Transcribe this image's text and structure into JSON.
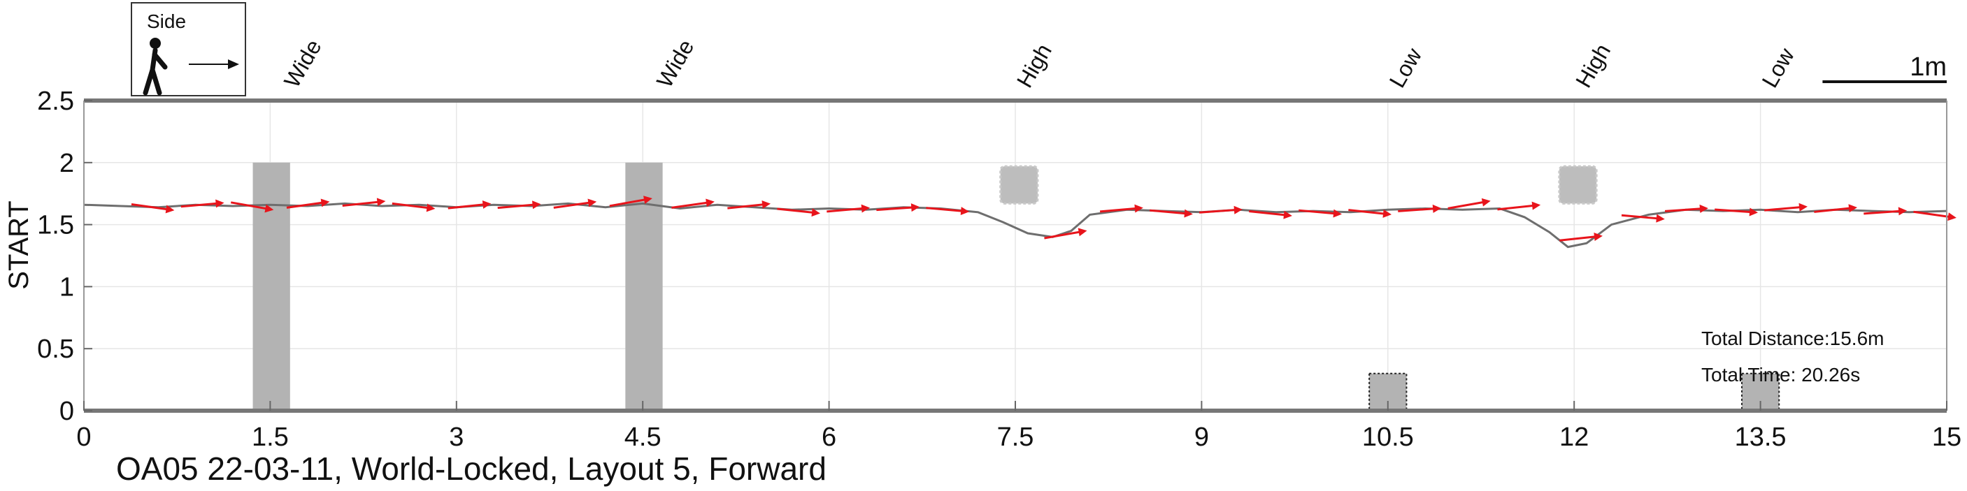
{
  "chart_data": {
    "type": "line",
    "title": "OA05 22-03-11, World-Locked, Layout 5, Forward",
    "ylabel": "START",
    "xlabel": "",
    "xlim": [
      0,
      15
    ],
    "ylim": [
      0,
      2.5
    ],
    "xticks": [
      0,
      1.5,
      3,
      4.5,
      6,
      7.5,
      9,
      10.5,
      12,
      13.5,
      15
    ],
    "xtick_labels": [
      "0",
      "1.5",
      "3",
      "4.5",
      "6",
      "7.5",
      "9",
      "10.5",
      "12",
      "13.5",
      "15"
    ],
    "yticks": [
      0,
      0.5,
      1,
      1.5,
      2,
      2.5
    ],
    "ytick_labels": [
      "0",
      "0.5",
      "1",
      "1.5",
      "2",
      "2.5"
    ],
    "grid": true,
    "legend_box": {
      "label": "Side",
      "icon": "walking-person-arrow-icon"
    },
    "scale_bar": {
      "label": "1m",
      "length": 1.0
    },
    "obstacle_labels": [
      {
        "x": 1.6,
        "label": "Wide"
      },
      {
        "x": 4.6,
        "label": "Wide"
      },
      {
        "x": 7.5,
        "label": "High"
      },
      {
        "x": 10.5,
        "label": "Low"
      },
      {
        "x": 12.0,
        "label": "High"
      },
      {
        "x": 13.5,
        "label": "Low"
      }
    ],
    "obstacles": [
      {
        "kind": "wide",
        "x0": 1.36,
        "x1": 1.66,
        "y0": 0,
        "y1": 2.0
      },
      {
        "kind": "wide",
        "x0": 4.36,
        "x1": 4.66,
        "y0": 0,
        "y1": 2.0
      },
      {
        "kind": "high",
        "x0": 7.38,
        "x1": 7.68,
        "y0": 1.67,
        "y1": 1.97
      },
      {
        "kind": "high",
        "x0": 11.88,
        "x1": 12.18,
        "y0": 1.67,
        "y1": 1.97
      },
      {
        "kind": "low",
        "x0": 10.35,
        "x1": 10.65,
        "y0": 0,
        "y1": 0.3
      },
      {
        "kind": "low",
        "x0": 13.35,
        "x1": 13.65,
        "y0": 0,
        "y1": 0.3
      }
    ],
    "series": [
      {
        "x": [
          0,
          0.3,
          0.6,
          0.9,
          1.2,
          1.5,
          1.8,
          2.1,
          2.4,
          2.7,
          3.0,
          3.3,
          3.6,
          3.9,
          4.2,
          4.5,
          4.8,
          5.1,
          5.4,
          5.7,
          6.0,
          6.3,
          6.6,
          6.9,
          7.2,
          7.4,
          7.6,
          7.8,
          7.95,
          8.1,
          8.4,
          8.7,
          9.0,
          9.3,
          9.6,
          9.9,
          10.2,
          10.5,
          10.8,
          11.1,
          11.4,
          11.6,
          11.8,
          11.95,
          12.1,
          12.3,
          12.6,
          12.9,
          13.2,
          13.5,
          13.8,
          14.1,
          14.4,
          14.7,
          15.0
        ],
        "y": [
          1.66,
          1.65,
          1.64,
          1.66,
          1.65,
          1.66,
          1.65,
          1.67,
          1.65,
          1.66,
          1.64,
          1.66,
          1.65,
          1.67,
          1.64,
          1.67,
          1.63,
          1.66,
          1.64,
          1.62,
          1.63,
          1.62,
          1.64,
          1.63,
          1.6,
          1.52,
          1.43,
          1.4,
          1.45,
          1.58,
          1.62,
          1.61,
          1.6,
          1.62,
          1.6,
          1.61,
          1.6,
          1.62,
          1.63,
          1.62,
          1.63,
          1.56,
          1.44,
          1.32,
          1.35,
          1.5,
          1.58,
          1.62,
          1.61,
          1.62,
          1.6,
          1.62,
          1.61,
          1.6,
          1.61
        ]
      }
    ],
    "arrows": [
      {
        "x": 0.55,
        "y": 1.64,
        "angle": -8
      },
      {
        "x": 0.95,
        "y": 1.66,
        "angle": 5
      },
      {
        "x": 1.35,
        "y": 1.65,
        "angle": -10
      },
      {
        "x": 1.8,
        "y": 1.66,
        "angle": 8
      },
      {
        "x": 2.25,
        "y": 1.67,
        "angle": 6
      },
      {
        "x": 2.65,
        "y": 1.65,
        "angle": -7
      },
      {
        "x": 3.1,
        "y": 1.65,
        "angle": 6
      },
      {
        "x": 3.5,
        "y": 1.65,
        "angle": 5
      },
      {
        "x": 3.95,
        "y": 1.66,
        "angle": 8
      },
      {
        "x": 4.4,
        "y": 1.68,
        "angle": 10
      },
      {
        "x": 4.9,
        "y": 1.66,
        "angle": 8
      },
      {
        "x": 5.35,
        "y": 1.65,
        "angle": 6
      },
      {
        "x": 5.75,
        "y": 1.61,
        "angle": -6
      },
      {
        "x": 6.15,
        "y": 1.62,
        "angle": 5
      },
      {
        "x": 6.55,
        "y": 1.63,
        "angle": 4
      },
      {
        "x": 6.95,
        "y": 1.62,
        "angle": -5
      },
      {
        "x": 7.9,
        "y": 1.42,
        "angle": 10
      },
      {
        "x": 8.35,
        "y": 1.62,
        "angle": 5
      },
      {
        "x": 8.75,
        "y": 1.6,
        "angle": -5
      },
      {
        "x": 9.15,
        "y": 1.61,
        "angle": 4
      },
      {
        "x": 9.55,
        "y": 1.59,
        "angle": -6
      },
      {
        "x": 9.95,
        "y": 1.6,
        "angle": -5
      },
      {
        "x": 10.35,
        "y": 1.6,
        "angle": -6
      },
      {
        "x": 10.75,
        "y": 1.62,
        "angle": 4
      },
      {
        "x": 11.15,
        "y": 1.66,
        "angle": 10
      },
      {
        "x": 11.55,
        "y": 1.64,
        "angle": 6
      },
      {
        "x": 12.05,
        "y": 1.39,
        "angle": 6
      },
      {
        "x": 12.55,
        "y": 1.56,
        "angle": -5
      },
      {
        "x": 12.9,
        "y": 1.62,
        "angle": 4
      },
      {
        "x": 13.3,
        "y": 1.61,
        "angle": -4
      },
      {
        "x": 13.7,
        "y": 1.63,
        "angle": 5
      },
      {
        "x": 14.1,
        "y": 1.62,
        "angle": 6
      },
      {
        "x": 14.5,
        "y": 1.6,
        "angle": 4
      },
      {
        "x": 14.9,
        "y": 1.58,
        "angle": -8
      }
    ],
    "annotations": [
      {
        "text": "Total Distance:15.6m"
      },
      {
        "text": "Total Time: 20.26s"
      }
    ],
    "colors": {
      "trajectory": "#6e6e6e",
      "arrow": "#e8141b",
      "obstacle": "#b3b3b3",
      "obstacle_high": "#bdbdbd",
      "axis": "#777777",
      "grid": "#e6e6e6"
    }
  }
}
